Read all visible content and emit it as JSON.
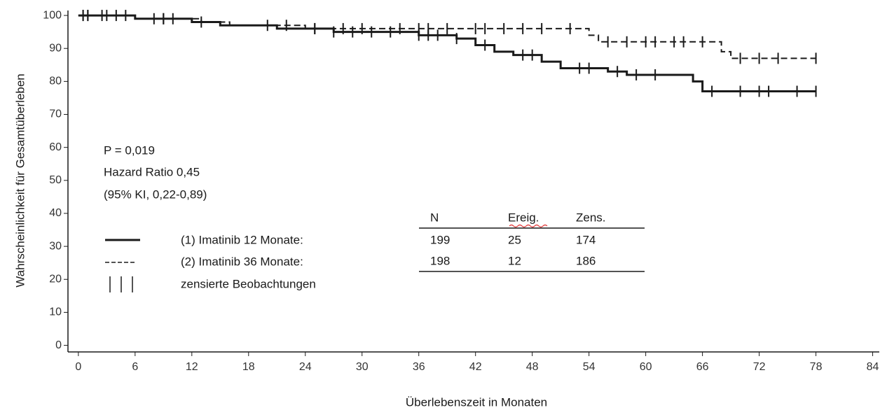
{
  "chart_data": {
    "type": "step",
    "xlabel": "Überlebenszeit in Monaten",
    "ylabel": "Wahrscheinlichkeit für Gesamtüberleben",
    "xlim": [
      -1.1,
      84.7
    ],
    "ylim": [
      -2,
      101.5
    ],
    "xticks": [
      0,
      6,
      12,
      18,
      24,
      30,
      36,
      42,
      48,
      54,
      60,
      66,
      72,
      78,
      84
    ],
    "yticks": [
      0,
      10,
      20,
      30,
      40,
      50,
      60,
      70,
      80,
      90,
      100
    ],
    "annotations": [
      "P = 0,019",
      "Hazard Ratio 0,45",
      "(95% KI, 0,22-0,89)"
    ],
    "legend": [
      "(1) Imatinib 12 Monate:",
      "(2) Imatinib 36 Monate:",
      "zensierte Beobachtungen"
    ],
    "table": {
      "header": [
        "N",
        "Ereig.",
        "Zens."
      ],
      "rows": [
        [
          "199",
          "25",
          "174"
        ],
        [
          "198",
          "12",
          "186"
        ]
      ]
    },
    "series": [
      {
        "name": "(1) Imatinib 12 Monate:",
        "color": "#1a1a1a",
        "dash": false,
        "x": [
          0,
          6,
          12,
          15,
          21,
          27,
          36,
          40,
          42,
          44,
          46,
          49,
          51,
          56,
          58,
          65,
          66,
          78
        ],
        "values": [
          100,
          99,
          98,
          97,
          96,
          95,
          94,
          93,
          91,
          89,
          88,
          86,
          84,
          83,
          82,
          80,
          77,
          77
        ],
        "censored": [
          0.5,
          1,
          2.5,
          4,
          8,
          9,
          13,
          20,
          25,
          27,
          29,
          31,
          33,
          36,
          37,
          38,
          40,
          43,
          47,
          48,
          53,
          54,
          57,
          59,
          61,
          67,
          70,
          72,
          73,
          76,
          78
        ]
      },
      {
        "name": "(2) Imatinib 36 Monate:",
        "color": "#1a1a1a",
        "dash": true,
        "x": [
          0,
          6,
          13,
          16,
          24,
          54,
          55,
          68,
          69,
          78
        ],
        "values": [
          100,
          99,
          98,
          97,
          96,
          94,
          92,
          89,
          87,
          87
        ],
        "censored": [
          0.5,
          1,
          3,
          5,
          9,
          10,
          22,
          25,
          28,
          30,
          34,
          36,
          37,
          39,
          42,
          43,
          45,
          47,
          49,
          52,
          56,
          58,
          60,
          61,
          63,
          64,
          66,
          70,
          72,
          74,
          78
        ]
      }
    ]
  }
}
